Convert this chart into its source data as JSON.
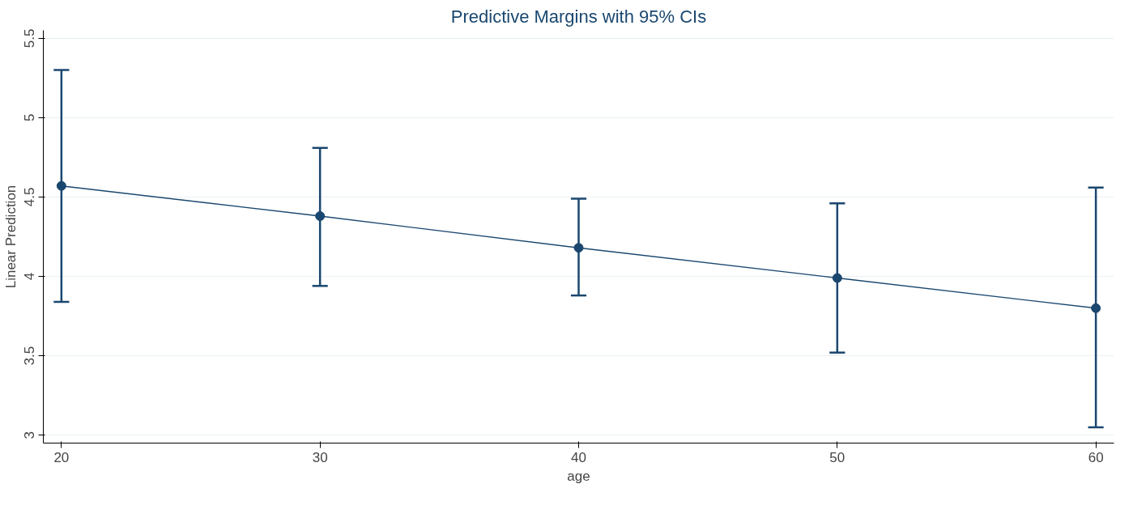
{
  "chart_data": {
    "type": "line",
    "title": "Predictive Margins with 95% CIs",
    "xlabel": "age",
    "ylabel": "Linear Prediction",
    "x": [
      20,
      30,
      40,
      50,
      60
    ],
    "series": [
      {
        "color": "#1a476f",
        "values": [
          4.57,
          4.38,
          4.18,
          3.99,
          3.8
        ],
        "errors": [
          [
            3.84,
            5.3
          ],
          [
            3.94,
            4.81
          ],
          [
            3.88,
            4.49
          ],
          [
            3.52,
            4.46
          ],
          [
            3.05,
            4.56
          ]
        ]
      }
    ],
    "xlim": [
      19.3,
      60.7
    ],
    "ylim": [
      2.95,
      5.55
    ],
    "xticks": [
      20,
      30,
      40,
      50,
      60
    ],
    "yticks": [
      3,
      3.5,
      4,
      4.5,
      5,
      5.5
    ],
    "grid": "y",
    "marker": "circle",
    "line_style": "solid"
  }
}
